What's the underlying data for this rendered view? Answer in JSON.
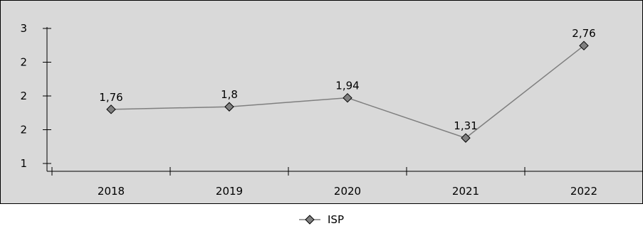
{
  "chart_data": {
    "type": "line",
    "categories": [
      "2018",
      "2019",
      "2020",
      "2021",
      "2022"
    ],
    "series": [
      {
        "name": "ISP",
        "values": [
          1.76,
          1.8,
          1.94,
          1.31,
          2.76
        ],
        "data_labels": [
          "1,76",
          "1,8",
          "1,94",
          "1,31",
          "2,76"
        ]
      }
    ],
    "y_tick_labels": [
      "3",
      "2",
      "2",
      "2",
      "1"
    ],
    "ylim": [
      0.91,
      3.03
    ],
    "title": "",
    "xlabel": "",
    "ylabel": "",
    "grid": false,
    "legend_position": "bottom",
    "colors": {
      "plot_background": "#d9d9d9",
      "line": "#7f7f7f",
      "marker_fill": "#808080",
      "marker_stroke": "#000000",
      "axis": "#000000"
    }
  }
}
